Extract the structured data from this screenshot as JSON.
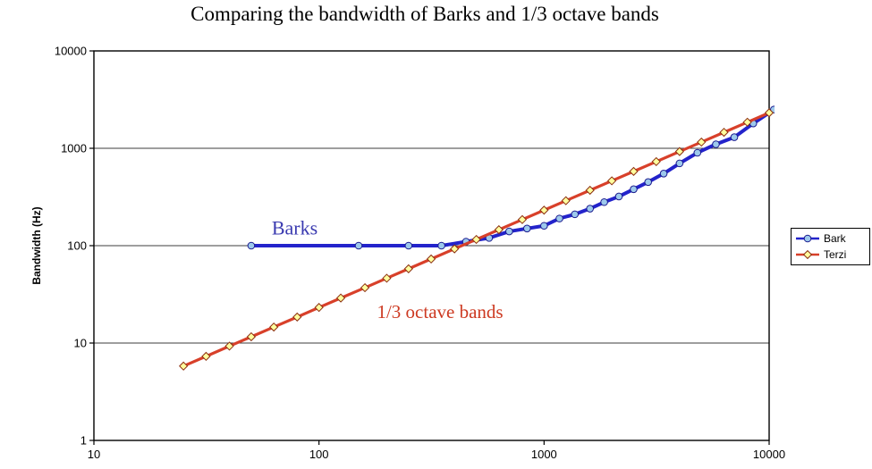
{
  "chart_data": {
    "type": "line",
    "title": "Comparing the bandwidth of Barks and 1/3 octave bands",
    "xlabel": "",
    "ylabel": "Bandwidth (Hz)",
    "x_scale": "log",
    "y_scale": "log",
    "xlim": [
      10,
      10000
    ],
    "ylim": [
      1,
      10000
    ],
    "x_ticks": [
      10,
      100,
      1000,
      10000
    ],
    "y_ticks": [
      1,
      10,
      100,
      1000,
      10000
    ],
    "grid": "horizontal",
    "grid_color": "#3c3c3c",
    "legend_position": "right",
    "series": [
      {
        "name": "Bark",
        "color": "#2323cb",
        "line_width": 4,
        "marker": "circle",
        "marker_fill": "#9dc9ec",
        "marker_edge": "#1b1b8f",
        "x": [
          50,
          150,
          250,
          350,
          450,
          570,
          700,
          840,
          1000,
          1170,
          1370,
          1600,
          1850,
          2150,
          2500,
          2900,
          3400,
          4000,
          4800,
          5800,
          7000,
          8500,
          10500
        ],
        "y": [
          100,
          100,
          100,
          100,
          110,
          120,
          140,
          150,
          160,
          190,
          210,
          240,
          280,
          320,
          380,
          450,
          550,
          700,
          900,
          1100,
          1300,
          1800,
          2500
        ]
      },
      {
        "name": "Terzi",
        "color": "#d8402a",
        "line_width": 3.2,
        "marker": "diamond",
        "marker_fill": "#ffff9e",
        "marker_edge": "#8b2e0e",
        "x": [
          25,
          31.5,
          40,
          50,
          63,
          80,
          100,
          125,
          160,
          200,
          250,
          315,
          400,
          500,
          630,
          800,
          1000,
          1250,
          1600,
          2000,
          2500,
          3150,
          4000,
          5000,
          6300,
          8000,
          10000
        ],
        "y": [
          5.8,
          7.3,
          9.3,
          11.6,
          14.6,
          18.5,
          23.2,
          29,
          37,
          46.3,
          57.9,
          73,
          92.7,
          115.8,
          145.9,
          185.3,
          231.6,
          289.5,
          370.6,
          463.2,
          579,
          729.5,
          926.4,
          1158,
          1459.3,
          1853,
          2316
        ]
      }
    ],
    "annotations": [
      {
        "text": "Barks",
        "color": "#3a3ab0",
        "x": 78,
        "y": 130,
        "font_size": 22
      },
      {
        "text": "1/3 octave bands",
        "color": "#cd3a22",
        "x": 345,
        "y": 18,
        "font_size": 21
      }
    ]
  }
}
